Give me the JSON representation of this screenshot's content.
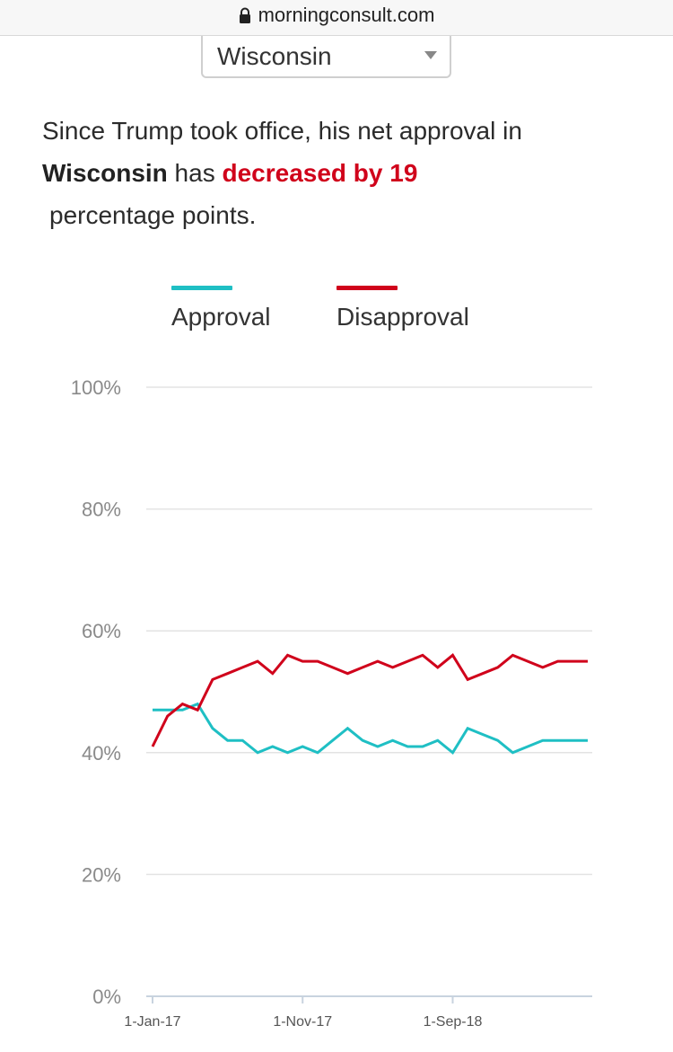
{
  "browser": {
    "url": "morningconsult.com",
    "lock_icon": "lock-icon"
  },
  "selector": {
    "selected": "Wisconsin",
    "icon": "chevron-down-icon"
  },
  "summary": {
    "prefix": "Since Trump took office, his net approval in",
    "state": "Wisconsin",
    "middle": " has ",
    "change": "decreased by 19",
    "suffix": "percentage points."
  },
  "colors": {
    "approval": "#1fbfc4",
    "disapproval": "#d0021b",
    "grid": "#e3e3e3",
    "axis": "#c8d3df"
  },
  "chart_data": {
    "type": "line",
    "ylim": [
      0,
      100
    ],
    "y_ticks": [
      0,
      20,
      40,
      60,
      80,
      100
    ],
    "y_tick_labels": [
      "0%",
      "20%",
      "40%",
      "60%",
      "80%",
      "100%"
    ],
    "x_tick_labels": [
      "1-Jan-17",
      "1-Nov-17",
      "1-Sep-18"
    ],
    "x_tick_indices": [
      0,
      10,
      20
    ],
    "grid": true,
    "legend": "top-center",
    "x": [
      "2017-01",
      "2017-02",
      "2017-03",
      "2017-04",
      "2017-05",
      "2017-06",
      "2017-07",
      "2017-08",
      "2017-09",
      "2017-10",
      "2017-11",
      "2017-12",
      "2018-01",
      "2018-02",
      "2018-03",
      "2018-04",
      "2018-05",
      "2018-06",
      "2018-07",
      "2018-08",
      "2018-09",
      "2018-10",
      "2018-11",
      "2018-12",
      "2019-01",
      "2019-02",
      "2019-03",
      "2019-04",
      "2019-05",
      "2019-06"
    ],
    "series": [
      {
        "name": "Approval",
        "values": [
          47,
          47,
          47,
          48,
          44,
          42,
          42,
          40,
          41,
          40,
          41,
          40,
          42,
          44,
          42,
          41,
          42,
          41,
          41,
          42,
          40,
          44,
          43,
          42,
          40,
          41,
          42,
          42,
          42,
          42
        ]
      },
      {
        "name": "Disapproval",
        "values": [
          41,
          46,
          48,
          47,
          52,
          53,
          54,
          55,
          53,
          56,
          55,
          55,
          54,
          53,
          54,
          55,
          54,
          55,
          56,
          54,
          56,
          52,
          53,
          54,
          56,
          55,
          54,
          55,
          55,
          55
        ]
      }
    ]
  }
}
